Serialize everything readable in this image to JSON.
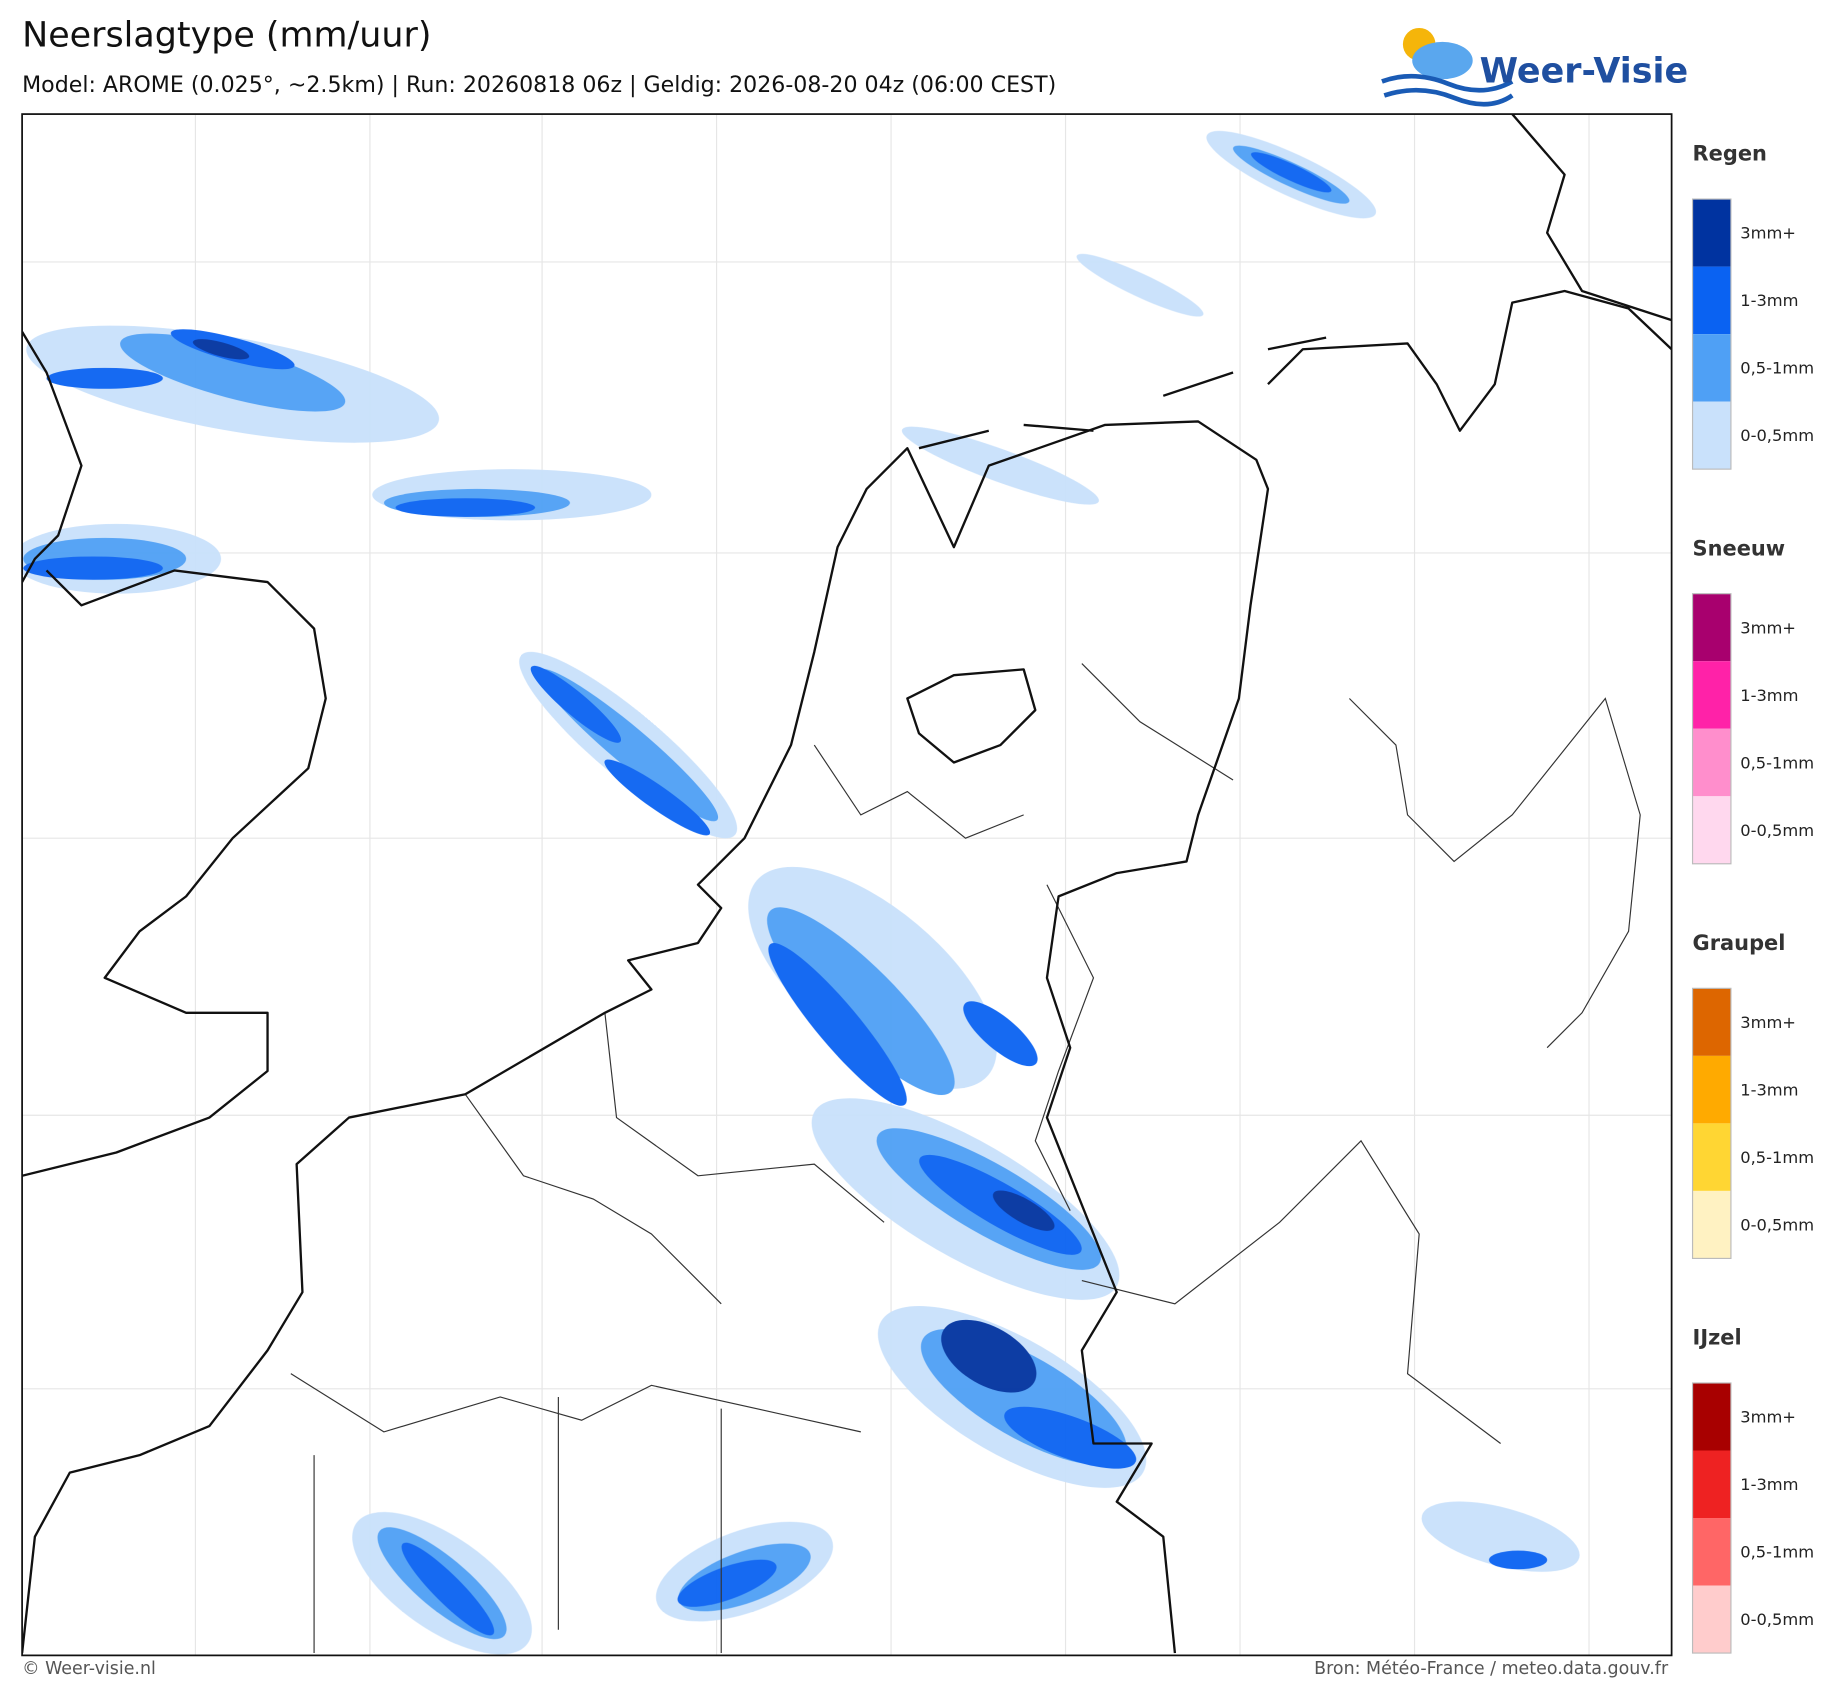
{
  "header": {
    "title": "Neerslagtype (mm/uur)",
    "subtitle": "Model: AROME (0.025°, ~2.5km)  |  Run: 20260818 06z  |  Geldig: 2026-08-20 04z (06:00 CEST)",
    "logo": "Weer-Visie"
  },
  "legend": [
    {
      "title": "Regen",
      "items": [
        {
          "label": "3mm+",
          "color": "#0033a0"
        },
        {
          "label": "1-3mm",
          "color": "#0a62f2"
        },
        {
          "label": "0,5-1mm",
          "color": "#4fa0f5"
        },
        {
          "label": "0-0,5mm",
          "color": "#c9e1fb"
        }
      ]
    },
    {
      "title": "Sneeuw",
      "items": [
        {
          "label": "3mm+",
          "color": "#a8006e"
        },
        {
          "label": "1-3mm",
          "color": "#ff22a8"
        },
        {
          "label": "0,5-1mm",
          "color": "#ff8ecc"
        },
        {
          "label": "0-0,5mm",
          "color": "#ffd8ee"
        }
      ]
    },
    {
      "title": "Graupel",
      "items": [
        {
          "label": "3mm+",
          "color": "#dd6600"
        },
        {
          "label": "1-3mm",
          "color": "#ffaa00"
        },
        {
          "label": "0,5-1mm",
          "color": "#ffd633"
        },
        {
          "label": "0-0,5mm",
          "color": "#fff2c2"
        }
      ]
    },
    {
      "title": "IJzel",
      "items": [
        {
          "label": "3mm+",
          "color": "#a80000"
        },
        {
          "label": "1-3mm",
          "color": "#ee2222"
        },
        {
          "label": "0,5-1mm",
          "color": "#ff6666"
        },
        {
          "label": "0-0,5mm",
          "color": "#ffcccc"
        }
      ]
    }
  ],
  "footer": {
    "left": "© Weer-visie.nl",
    "right": "Bron: Météo-France / meteo.data.gouv.fr"
  }
}
